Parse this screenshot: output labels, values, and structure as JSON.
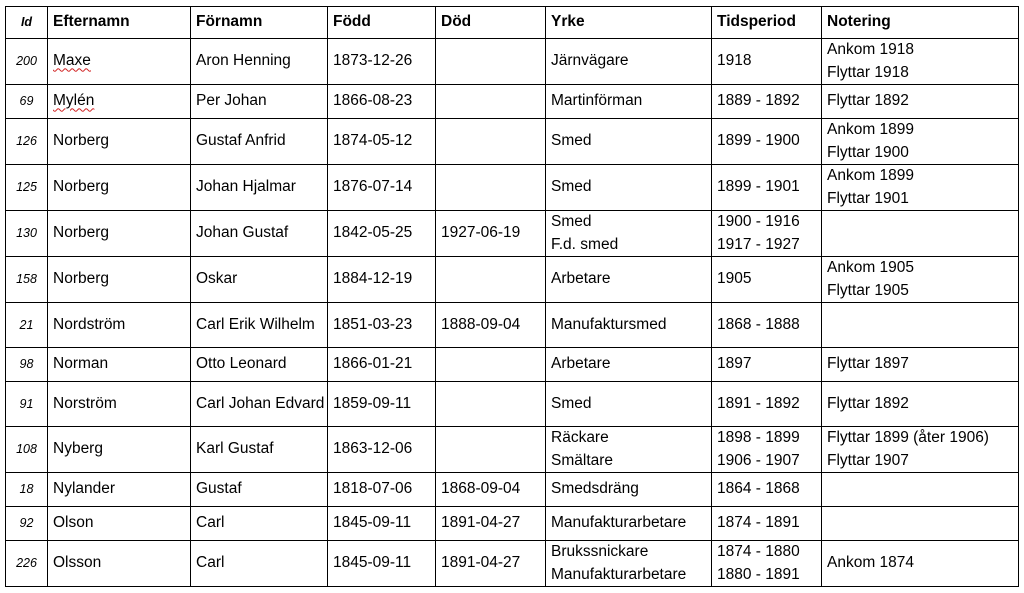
{
  "headers": {
    "id": "Id",
    "efternamn": "Efternamn",
    "fornamn": "Förnamn",
    "fodd": "Född",
    "dod": "Död",
    "yrke": "Yrke",
    "tidsperiod": "Tidsperiod",
    "notering": "Notering"
  },
  "rows": [
    {
      "id": "200",
      "efternamn": "Maxe",
      "fornamn": "Aron Henning",
      "fodd": "1873-12-26",
      "dod": "",
      "yrke": [
        "Järnvägare"
      ],
      "tidsperiod": [
        "1918"
      ],
      "notering": [
        "Ankom 1918",
        "Flyttar 1918"
      ]
    },
    {
      "id": "69",
      "efternamn": "Mylén",
      "fornamn": "Per Johan",
      "fodd": "1866-08-23",
      "dod": "",
      "yrke": [
        "Martinförman"
      ],
      "tidsperiod": [
        "1889 - 1892"
      ],
      "notering": [
        "Flyttar 1892"
      ]
    },
    {
      "id": "126",
      "efternamn": "Norberg",
      "fornamn": "Gustaf Anfrid",
      "fodd": "1874-05-12",
      "dod": "",
      "yrke": [
        "Smed"
      ],
      "tidsperiod": [
        "1899 - 1900"
      ],
      "notering": [
        "Ankom 1899",
        "Flyttar 1900"
      ]
    },
    {
      "id": "125",
      "efternamn": "Norberg",
      "fornamn": "Johan Hjalmar",
      "fodd": "1876-07-14",
      "dod": "",
      "yrke": [
        "Smed"
      ],
      "tidsperiod": [
        "1899 - 1901"
      ],
      "notering": [
        "Ankom 1899",
        "Flyttar 1901"
      ]
    },
    {
      "id": "130",
      "efternamn": "Norberg",
      "fornamn": "Johan Gustaf",
      "fodd": "1842-05-25",
      "dod": "1927-06-19",
      "yrke": [
        "Smed",
        "F.d. smed"
      ],
      "tidsperiod": [
        "1900 - 1916",
        "1917 - 1927"
      ],
      "notering": []
    },
    {
      "id": "158",
      "efternamn": "Norberg",
      "fornamn": "Oskar",
      "fodd": "1884-12-19",
      "dod": "",
      "yrke": [
        "Arbetare"
      ],
      "tidsperiod": [
        "1905"
      ],
      "notering": [
        "Ankom 1905",
        "Flyttar 1905"
      ]
    },
    {
      "id": "21",
      "efternamn": "Nordström",
      "fornamn": "Carl Erik Wilhelm",
      "fodd": "1851-03-23",
      "dod": "1888-09-04",
      "yrke": [
        "Manufaktursmed"
      ],
      "tidsperiod": [
        "1868 - 1888"
      ],
      "notering": []
    },
    {
      "id": "98",
      "efternamn": "Norman",
      "fornamn": "Otto Leonard",
      "fodd": "1866-01-21",
      "dod": "",
      "yrke": [
        "Arbetare"
      ],
      "tidsperiod": [
        "1897"
      ],
      "notering": [
        "Flyttar 1897"
      ]
    },
    {
      "id": "91",
      "efternamn": "Norström",
      "fornamn": "Carl Johan Edvard",
      "fodd": "1859-09-11",
      "dod": "",
      "yrke": [
        "Smed"
      ],
      "tidsperiod": [
        "1891 - 1892"
      ],
      "notering": [
        "Flyttar 1892"
      ]
    },
    {
      "id": "108",
      "efternamn": "Nyberg",
      "fornamn": "Karl Gustaf",
      "fodd": "1863-12-06",
      "dod": "",
      "yrke": [
        "Räckare",
        "Smältare"
      ],
      "tidsperiod": [
        "1898 - 1899",
        "1906 - 1907"
      ],
      "notering": [
        "Flyttar 1899 (åter 1906)",
        "Flyttar 1907"
      ]
    },
    {
      "id": "18",
      "efternamn": "Nylander",
      "fornamn": "Gustaf",
      "fodd": "1818-07-06",
      "dod": "1868-09-04",
      "yrke": [
        "Smedsdräng"
      ],
      "tidsperiod": [
        "1864 - 1868"
      ],
      "notering": []
    },
    {
      "id": "92",
      "efternamn": "Olson",
      "fornamn": "Carl",
      "fodd": "1845-09-11",
      "dod": "1891-04-27",
      "yrke": [
        "Manufakturarbetare"
      ],
      "tidsperiod": [
        "1874 - 1891"
      ],
      "notering": []
    },
    {
      "id": "226",
      "efternamn": "Olsson",
      "fornamn": "Carl",
      "fodd": "1845-09-11",
      "dod": "1891-04-27",
      "yrke": [
        "Brukssnickare",
        "Manufakturarbetare"
      ],
      "tidsperiod": [
        "1874 - 1880",
        "1880 - 1891"
      ],
      "notering": [
        "Ankom 1874"
      ]
    }
  ]
}
